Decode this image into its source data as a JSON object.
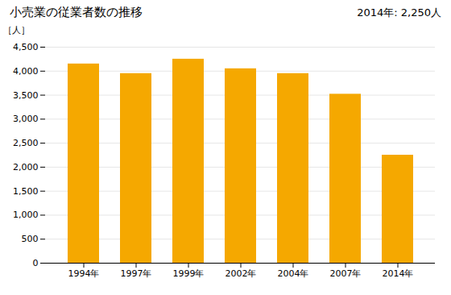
{
  "chart_data": {
    "type": "bar",
    "title": "小売業の従業者数の推移",
    "ylabel": "［人］",
    "annotation": "2014年: 2,250人",
    "categories": [
      "1994年",
      "1997年",
      "1999年",
      "2002年",
      "2004年",
      "2007年",
      "2014年"
    ],
    "values": [
      4150,
      3950,
      4250,
      4050,
      3950,
      3520,
      2250
    ],
    "color": "#F5A800",
    "ylim": [
      0,
      4500
    ],
    "yticks": [
      0,
      500,
      {
        "value": 1000,
        "label": "1,000"
      },
      {
        "value": 1500,
        "label": "1,500"
      },
      {
        "value": 2000,
        "label": "2,000"
      },
      {
        "value": 2500,
        "label": "2,500"
      },
      {
        "value": 3000,
        "label": "3,000"
      },
      {
        "value": 3500,
        "label": "3,500"
      },
      {
        "value": 4000,
        "label": "4,000"
      },
      {
        "value": 4500,
        "label": "4,500"
      }
    ],
    "grid": true
  }
}
